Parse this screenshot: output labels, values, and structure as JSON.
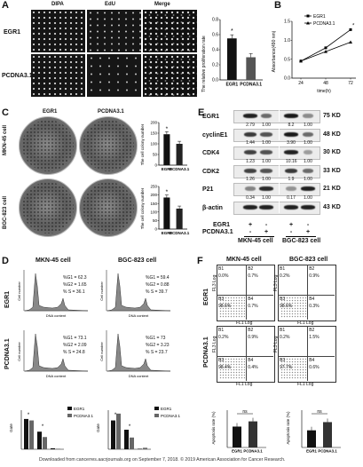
{
  "panels": {
    "A": "A",
    "B": "B",
    "C": "C",
    "D": "D",
    "E": "E",
    "F": "F"
  },
  "panelA": {
    "col_headers": [
      "DIPA",
      "EdU",
      "Merge"
    ],
    "row_labels": [
      "EGR1",
      "PCDNA3.1"
    ],
    "bar_chart": {
      "ylabel": "The relative proliferation rate",
      "categories": [
        "EGR1",
        "PCDNA3.1"
      ],
      "values": [
        0.55,
        0.3
      ],
      "ylim": [
        0,
        0.8
      ],
      "yticks": [
        "0.0",
        "0.2",
        "0.4",
        "0.6",
        "0.8"
      ],
      "star": "*"
    }
  },
  "panelB": {
    "ylabel": "Absorbance(490 nm)",
    "xlabel": "time(h)",
    "xticks": [
      "24",
      "48",
      "72"
    ],
    "yticks": [
      "0.0",
      "0.5",
      "1.0",
      "1.5"
    ],
    "legend": [
      "EGR1",
      "PCDNA3.1"
    ],
    "star": "*"
  },
  "panelC": {
    "col_headers": [
      "EGR1",
      "PCDNA3.1"
    ],
    "row_labels": [
      "MKN-45 cell",
      "BGC-823 cell"
    ],
    "charts": [
      {
        "ylabel": "The cell colony number",
        "categories": [
          "EGR1",
          "PCDNA3.1"
        ],
        "values": [
          145,
          100
        ],
        "ylim": [
          0,
          200
        ],
        "yticks": [
          "0",
          "50",
          "100",
          "150",
          "200"
        ],
        "star": "*"
      },
      {
        "ylabel": "The cell colony number",
        "categories": [
          "EGR1",
          "PCDNA3.1"
        ],
        "values": [
          185,
          120
        ],
        "ylim": [
          0,
          250
        ],
        "yticks": [
          "0",
          "50",
          "100",
          "150",
          "200",
          "250"
        ],
        "star": "*"
      }
    ]
  },
  "panelD": {
    "col_headers": [
      "MKN-45 cell",
      "BGC-823 cell"
    ],
    "row_labels": [
      "EGR1",
      "PCDNA3.1"
    ],
    "axis_y": "Cell number",
    "axis_x": "DNA content",
    "stats": [
      [
        "%G1 = 62.3",
        "%G2 = 1.65",
        "% S = 36.1"
      ],
      [
        "%G1 = 59.4",
        "%G2 = 0.88",
        "% S = 39.7"
      ],
      [
        "%G1 = 73.1",
        "%G2 = 2.09",
        "% S = 24.8"
      ],
      [
        "%G1 = 73",
        "%G2 = 3.23",
        "% S = 23.7"
      ]
    ],
    "bar_legend": [
      "EGR1",
      "PCDNA3.1"
    ],
    "bar_ylabel": "Gate",
    "stars": [
      "*",
      "*"
    ]
  },
  "panelE": {
    "proteins": [
      "EGR1",
      "cyclinE1",
      "CDK4",
      "CDK2",
      "P21",
      "β-actin"
    ],
    "kd": [
      "75 KD",
      "48 KD",
      "30 KD",
      "33 KD",
      "21 KD",
      "43 KD"
    ],
    "quant": [
      [
        "2.79",
        "1.00",
        "8.2",
        "1.00"
      ],
      [
        "1.44",
        "1.00",
        "3.90",
        "1.00"
      ],
      [
        "1.23",
        "1.00",
        "10.16",
        "1.00"
      ],
      [
        "1.26",
        "1.00",
        "1.9",
        "1.00"
      ],
      [
        "0.34",
        "1.00",
        "0.17",
        "1.00"
      ]
    ],
    "treatment_rows": [
      {
        "label": "EGR1",
        "signs": [
          "+",
          "-",
          "+",
          "-"
        ]
      },
      {
        "label": "PCDNA3.1",
        "signs": [
          "-",
          "+",
          "-",
          "+"
        ]
      }
    ],
    "cell_lines": [
      "MKN-45 cell",
      "BGC-823 cell"
    ]
  },
  "panelF": {
    "col_headers": [
      "MKN-45 cell",
      "BGC-823 cell"
    ],
    "row_labels": [
      "EGR1",
      "PCDNA3.1"
    ],
    "axis_y": "FL3 Log",
    "axis_x": "FL1 Log",
    "quadrants": [
      [
        "B1",
        "B2",
        "B3",
        "B4"
      ],
      [
        "B1",
        "B2",
        "B3",
        "B4"
      ],
      [
        "B1",
        "B2",
        "B3",
        "B4"
      ],
      [
        "B1",
        "B2",
        "B3",
        "B4"
      ]
    ],
    "values": [
      [
        "0.0%",
        "0.7%",
        "98.6%",
        "0.7%"
      ],
      [
        "0.2%",
        "0.9%",
        "98.6%",
        "0.3%"
      ],
      [
        "0.2%",
        "0.9%",
        "98.4%",
        "0.4%"
      ],
      [
        "0.2%",
        "1.5%",
        "97.7%",
        "0.6%"
      ]
    ],
    "bar_ylabel": "Apoptosis rate (%)",
    "bar_categories": [
      "EGR1",
      "PCDNA3.1"
    ],
    "ns": "ns"
  },
  "footer": "Downloaded from cancerres.aacrjournals.org on September 7, 2018. © 2019 American Association for Cancer Research."
}
